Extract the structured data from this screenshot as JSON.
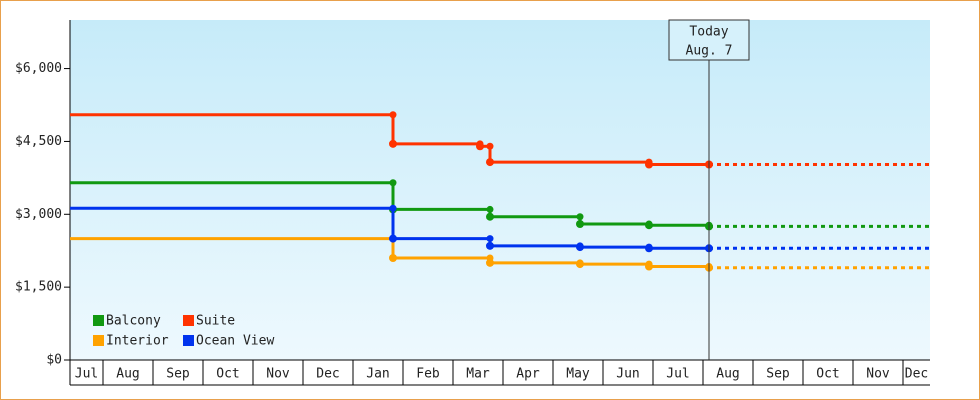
{
  "chart_data": {
    "type": "step-line",
    "categories": [
      "Jul",
      "Aug",
      "Sep",
      "Oct",
      "Nov",
      "Dec",
      "Jan",
      "Feb",
      "Mar",
      "Apr",
      "May",
      "Jun",
      "Jul",
      "Aug",
      "Sep",
      "Oct",
      "Nov",
      "Dec"
    ],
    "xlim": [
      0.34,
      17.54
    ],
    "ylim": [
      0,
      7000
    ],
    "yticks": [
      {
        "value": 0,
        "label": "$0"
      },
      {
        "value": 1500,
        "label": "$1,500"
      },
      {
        "value": 3000,
        "label": "$3,000"
      },
      {
        "value": 4500,
        "label": "$4,500"
      },
      {
        "value": 6000,
        "label": "$6,000"
      }
    ],
    "series": [
      {
        "name": "Balcony",
        "color": "#119911",
        "x": [
          0.34,
          6.8,
          8.74,
          10.54,
          11.92,
          13.12
        ],
        "values": [
          3650,
          3100,
          2950,
          2800,
          2775,
          2750
        ]
      },
      {
        "name": "Suite",
        "color": "#ff3300",
        "x": [
          0.34,
          6.8,
          8.54,
          8.74,
          11.92,
          13.12
        ],
        "values": [
          5050,
          4450,
          4400,
          4075,
          4025,
          4025
        ]
      },
      {
        "name": "Interior",
        "color": "#ffa200",
        "x": [
          0.34,
          6.8,
          8.74,
          10.54,
          11.92,
          13.12
        ],
        "values": [
          2500,
          2100,
          2000,
          1975,
          1925,
          1900
        ]
      },
      {
        "name": "Ocean View",
        "color": "#0033ee",
        "x": [
          0.34,
          6.8,
          8.74,
          10.54,
          11.92,
          13.12
        ],
        "values": [
          3125,
          2500,
          2350,
          2325,
          2300,
          2300
        ]
      }
    ],
    "annotation": {
      "x": 13.12,
      "lines": [
        "Today",
        "Aug. 7"
      ]
    },
    "legend": "lower-left"
  }
}
